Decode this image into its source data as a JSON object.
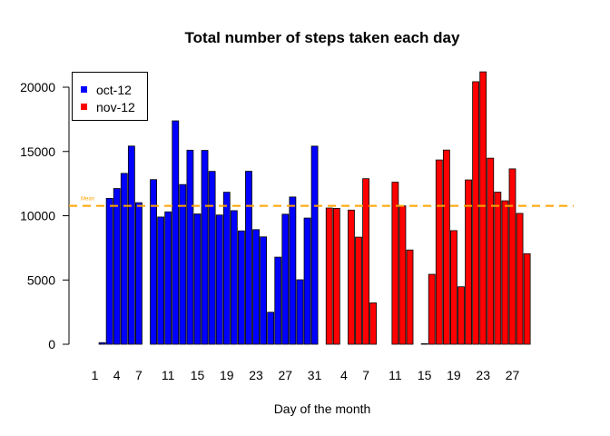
{
  "chart_data": {
    "type": "bar",
    "title": "Total number of steps taken each day",
    "xlabel": "Day of the month",
    "ylabel": "",
    "ylim": [
      0,
      22000
    ],
    "yticks": [
      0,
      5000,
      10000,
      15000,
      20000
    ],
    "grid": false,
    "legend_position": "top-left",
    "mean_line": {
      "label": "Mean",
      "value": 10766,
      "color": "#FFA500"
    },
    "series": [
      {
        "name": "oct-12",
        "color": "#0000FF",
        "tick_labels": [
          "1",
          "4",
          "7",
          "11",
          "15",
          "19",
          "23",
          "27",
          "31"
        ],
        "tick_days": [
          1,
          4,
          7,
          11,
          15,
          19,
          23,
          27,
          31
        ],
        "days": [
          1,
          2,
          3,
          4,
          5,
          6,
          7,
          8,
          9,
          10,
          11,
          12,
          13,
          14,
          15,
          16,
          17,
          18,
          19,
          20,
          21,
          22,
          23,
          24,
          25,
          26,
          27,
          28,
          29,
          30,
          31
        ],
        "values": [
          0,
          126,
          11352,
          12116,
          13294,
          15420,
          11015,
          0,
          12811,
          9900,
          10304,
          17382,
          12426,
          15098,
          10139,
          15084,
          13452,
          10056,
          11829,
          10395,
          8821,
          13460,
          8918,
          8355,
          2492,
          6778,
          10119,
          11458,
          5018,
          9819,
          15414
        ]
      },
      {
        "name": "nov-12",
        "color": "#FF0000",
        "tick_labels": [
          "4",
          "7",
          "11",
          "15",
          "19",
          "23",
          "27"
        ],
        "tick_days": [
          4,
          7,
          11,
          15,
          19,
          23,
          27
        ],
        "days": [
          1,
          2,
          3,
          4,
          5,
          6,
          7,
          8,
          9,
          10,
          11,
          12,
          13,
          14,
          15,
          16,
          17,
          18,
          19,
          20,
          21,
          22,
          23,
          24,
          25,
          26,
          27,
          28,
          29,
          30
        ],
        "values": [
          0,
          10600,
          10571,
          0,
          10439,
          8334,
          12883,
          3219,
          0,
          0,
          12608,
          10765,
          7336,
          0,
          41,
          5441,
          14339,
          15110,
          8841,
          4472,
          12787,
          20427,
          21194,
          14478,
          11834,
          11162,
          13646,
          10183,
          7047,
          0
        ]
      }
    ]
  }
}
